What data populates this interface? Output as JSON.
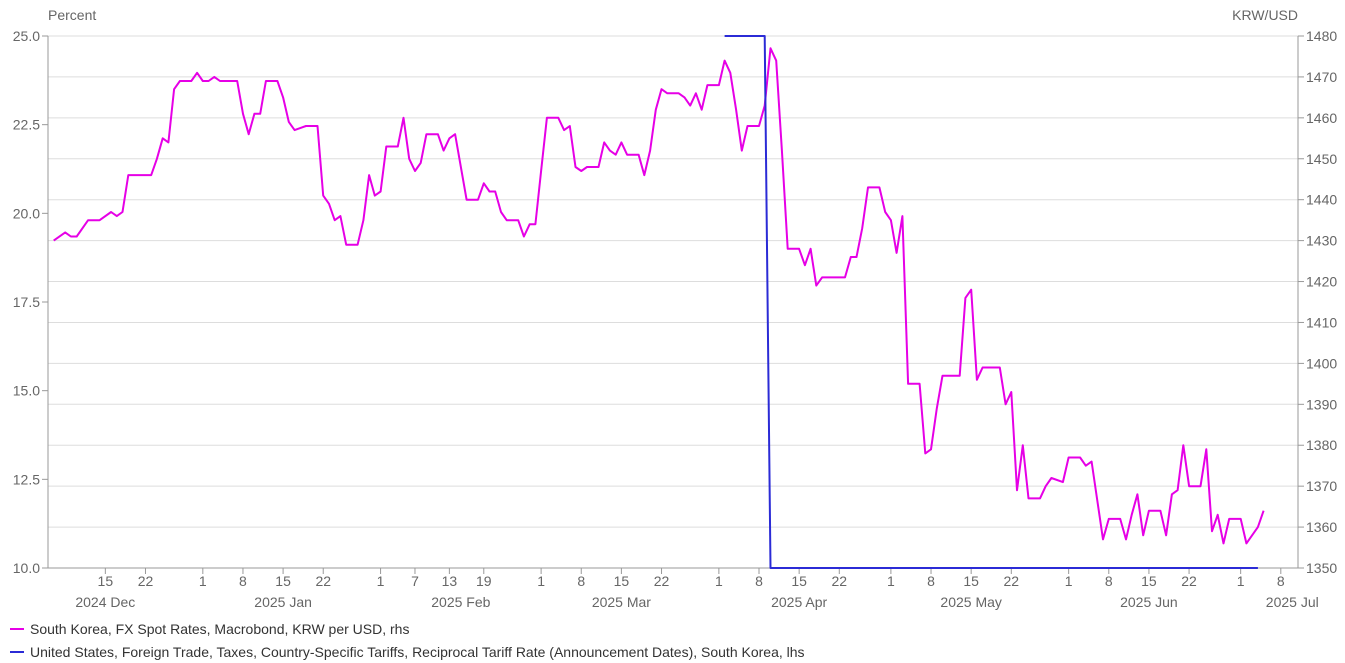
{
  "chart_data": {
    "type": "line",
    "left_axis": {
      "unit_label": "Percent",
      "range": [
        10,
        25
      ],
      "ticks": [
        "25.0",
        "22.5",
        "20.0",
        "17.5",
        "15.0",
        "12.5",
        "10.0"
      ]
    },
    "right_axis": {
      "unit_label": "KRW/USD",
      "range": [
        1350,
        1480
      ],
      "ticks": [
        "1480",
        "1470",
        "1460",
        "1450",
        "1440",
        "1430",
        "1420",
        "1410",
        "1400",
        "1390",
        "1380",
        "1370",
        "1360",
        "1350"
      ]
    },
    "x_axis": {
      "range": [
        "2024-12-05",
        "2025-07-11"
      ],
      "day_ticks": [
        {
          "date": "2024-12-15",
          "label": "15"
        },
        {
          "date": "2024-12-22",
          "label": "22"
        },
        {
          "date": "2025-01-01",
          "label": "1"
        },
        {
          "date": "2025-01-08",
          "label": "8"
        },
        {
          "date": "2025-01-15",
          "label": "15"
        },
        {
          "date": "2025-01-22",
          "label": "22"
        },
        {
          "date": "2025-02-01",
          "label": "1"
        },
        {
          "date": "2025-02-07",
          "label": "7"
        },
        {
          "date": "2025-02-13",
          "label": "13"
        },
        {
          "date": "2025-02-19",
          "label": "19"
        },
        {
          "date": "2025-03-01",
          "label": "1"
        },
        {
          "date": "2025-03-08",
          "label": "8"
        },
        {
          "date": "2025-03-15",
          "label": "15"
        },
        {
          "date": "2025-03-22",
          "label": "22"
        },
        {
          "date": "2025-04-01",
          "label": "1"
        },
        {
          "date": "2025-04-08",
          "label": "8"
        },
        {
          "date": "2025-04-15",
          "label": "15"
        },
        {
          "date": "2025-04-22",
          "label": "22"
        },
        {
          "date": "2025-05-01",
          "label": "1"
        },
        {
          "date": "2025-05-08",
          "label": "8"
        },
        {
          "date": "2025-05-15",
          "label": "15"
        },
        {
          "date": "2025-05-22",
          "label": "22"
        },
        {
          "date": "2025-06-01",
          "label": "1"
        },
        {
          "date": "2025-06-08",
          "label": "8"
        },
        {
          "date": "2025-06-15",
          "label": "15"
        },
        {
          "date": "2025-06-22",
          "label": "22"
        },
        {
          "date": "2025-07-01",
          "label": "1"
        },
        {
          "date": "2025-07-08",
          "label": "8"
        }
      ],
      "month_labels": [
        {
          "date": "2024-12-15",
          "label": "2024 Dec"
        },
        {
          "date": "2025-01-15",
          "label": "2025 Jan"
        },
        {
          "date": "2025-02-15",
          "label": "2025 Feb"
        },
        {
          "date": "2025-03-15",
          "label": "2025 Mar"
        },
        {
          "date": "2025-04-15",
          "label": "2025 Apr"
        },
        {
          "date": "2025-05-15",
          "label": "2025 May"
        },
        {
          "date": "2025-06-15",
          "label": "2025 Jun"
        },
        {
          "date": "2025-07-10",
          "label": "2025 Jul"
        }
      ]
    },
    "grid": true,
    "legend_position": "bottom-left",
    "series": [
      {
        "name": "South Korea, FX Spot Rates, Macrobond, KRW per USD, rhs",
        "axis": "right",
        "color": "#e600e6",
        "points": [
          [
            "2024-12-06",
            1430
          ],
          [
            "2024-12-08",
            1432
          ],
          [
            "2024-12-09",
            1431
          ],
          [
            "2024-12-10",
            1431
          ],
          [
            "2024-12-12",
            1435
          ],
          [
            "2024-12-14",
            1435
          ],
          [
            "2024-12-16",
            1437
          ],
          [
            "2024-12-17",
            1436
          ],
          [
            "2024-12-18",
            1437
          ],
          [
            "2024-12-19",
            1446
          ],
          [
            "2024-12-20",
            1446
          ],
          [
            "2024-12-23",
            1446
          ],
          [
            "2024-12-24",
            1450
          ],
          [
            "2024-12-25",
            1455
          ],
          [
            "2024-12-26",
            1454
          ],
          [
            "2024-12-27",
            1467
          ],
          [
            "2024-12-28",
            1469
          ],
          [
            "2024-12-30",
            1469
          ],
          [
            "2024-12-31",
            1471
          ],
          [
            "2025-01-01",
            1469
          ],
          [
            "2025-01-02",
            1469
          ],
          [
            "2025-01-03",
            1470
          ],
          [
            "2025-01-04",
            1469
          ],
          [
            "2025-01-07",
            1469
          ],
          [
            "2025-01-08",
            1461
          ],
          [
            "2025-01-09",
            1456
          ],
          [
            "2025-01-10",
            1461
          ],
          [
            "2025-01-11",
            1461
          ],
          [
            "2025-01-12",
            1469
          ],
          [
            "2025-01-14",
            1469
          ],
          [
            "2025-01-15",
            1465
          ],
          [
            "2025-01-16",
            1459
          ],
          [
            "2025-01-17",
            1457
          ],
          [
            "2025-01-19",
            1458
          ],
          [
            "2025-01-20",
            1458
          ],
          [
            "2025-01-21",
            1458
          ],
          [
            "2025-01-22",
            1441
          ],
          [
            "2025-01-23",
            1439
          ],
          [
            "2025-01-24",
            1435
          ],
          [
            "2025-01-25",
            1436
          ],
          [
            "2025-01-26",
            1429
          ],
          [
            "2025-01-28",
            1429
          ],
          [
            "2025-01-29",
            1435
          ],
          [
            "2025-01-30",
            1446
          ],
          [
            "2025-01-31",
            1441
          ],
          [
            "2025-02-01",
            1442
          ],
          [
            "2025-02-02",
            1453
          ],
          [
            "2025-02-04",
            1453
          ],
          [
            "2025-02-05",
            1460
          ],
          [
            "2025-02-06",
            1450
          ],
          [
            "2025-02-07",
            1447
          ],
          [
            "2025-02-08",
            1449
          ],
          [
            "2025-02-09",
            1456
          ],
          [
            "2025-02-11",
            1456
          ],
          [
            "2025-02-12",
            1452
          ],
          [
            "2025-02-13",
            1455
          ],
          [
            "2025-02-14",
            1456
          ],
          [
            "2025-02-16",
            1440
          ],
          [
            "2025-02-18",
            1440
          ],
          [
            "2025-02-19",
            1444
          ],
          [
            "2025-02-20",
            1442
          ],
          [
            "2025-02-21",
            1442
          ],
          [
            "2025-02-22",
            1437
          ],
          [
            "2025-02-23",
            1435
          ],
          [
            "2025-02-25",
            1435
          ],
          [
            "2025-02-26",
            1431
          ],
          [
            "2025-02-27",
            1434
          ],
          [
            "2025-02-28",
            1434
          ],
          [
            "2025-03-01",
            1447
          ],
          [
            "2025-03-02",
            1460
          ],
          [
            "2025-03-04",
            1460
          ],
          [
            "2025-03-05",
            1457
          ],
          [
            "2025-03-06",
            1458
          ],
          [
            "2025-03-07",
            1448
          ],
          [
            "2025-03-08",
            1447
          ],
          [
            "2025-03-09",
            1448
          ],
          [
            "2025-03-11",
            1448
          ],
          [
            "2025-03-12",
            1454
          ],
          [
            "2025-03-13",
            1452
          ],
          [
            "2025-03-14",
            1451
          ],
          [
            "2025-03-15",
            1454
          ],
          [
            "2025-03-16",
            1451
          ],
          [
            "2025-03-18",
            1451
          ],
          [
            "2025-03-19",
            1446
          ],
          [
            "2025-03-20",
            1452
          ],
          [
            "2025-03-21",
            1462
          ],
          [
            "2025-03-22",
            1467
          ],
          [
            "2025-03-23",
            1466
          ],
          [
            "2025-03-25",
            1466
          ],
          [
            "2025-03-26",
            1465
          ],
          [
            "2025-03-27",
            1463
          ],
          [
            "2025-03-28",
            1466
          ],
          [
            "2025-03-29",
            1462
          ],
          [
            "2025-03-30",
            1468
          ],
          [
            "2025-04-01",
            1468
          ],
          [
            "2025-04-02",
            1474
          ],
          [
            "2025-04-03",
            1471
          ],
          [
            "2025-04-04",
            1462
          ],
          [
            "2025-04-05",
            1452
          ],
          [
            "2025-04-06",
            1458
          ],
          [
            "2025-04-08",
            1458
          ],
          [
            "2025-04-09",
            1463
          ],
          [
            "2025-04-10",
            1477
          ],
          [
            "2025-04-11",
            1474
          ],
          [
            "2025-04-12",
            1452
          ],
          [
            "2025-04-13",
            1428
          ],
          [
            "2025-04-15",
            1428
          ],
          [
            "2025-04-16",
            1424
          ],
          [
            "2025-04-17",
            1428
          ],
          [
            "2025-04-18",
            1419
          ],
          [
            "2025-04-19",
            1421
          ],
          [
            "2025-04-22",
            1421
          ],
          [
            "2025-04-23",
            1421
          ],
          [
            "2025-04-24",
            1426
          ],
          [
            "2025-04-25",
            1426
          ],
          [
            "2025-04-26",
            1433
          ],
          [
            "2025-04-27",
            1443
          ],
          [
            "2025-04-29",
            1443
          ],
          [
            "2025-04-30",
            1437
          ],
          [
            "2025-05-01",
            1435
          ],
          [
            "2025-05-02",
            1427
          ],
          [
            "2025-05-03",
            1436
          ],
          [
            "2025-05-04",
            1395
          ],
          [
            "2025-05-06",
            1395
          ],
          [
            "2025-05-07",
            1378
          ],
          [
            "2025-05-08",
            1379
          ],
          [
            "2025-05-09",
            1389
          ],
          [
            "2025-05-10",
            1397
          ],
          [
            "2025-05-13",
            1397
          ],
          [
            "2025-05-14",
            1416
          ],
          [
            "2025-05-15",
            1418
          ],
          [
            "2025-05-16",
            1396
          ],
          [
            "2025-05-17",
            1399
          ],
          [
            "2025-05-18",
            1399
          ],
          [
            "2025-05-20",
            1399
          ],
          [
            "2025-05-21",
            1390
          ],
          [
            "2025-05-22",
            1393
          ],
          [
            "2025-05-23",
            1369
          ],
          [
            "2025-05-24",
            1380
          ],
          [
            "2025-05-25",
            1367
          ],
          [
            "2025-05-27",
            1367
          ],
          [
            "2025-05-28",
            1370
          ],
          [
            "2025-05-29",
            1372
          ],
          [
            "2025-05-31",
            1371
          ],
          [
            "2025-06-01",
            1377
          ],
          [
            "2025-06-03",
            1377
          ],
          [
            "2025-06-04",
            1375
          ],
          [
            "2025-06-05",
            1376
          ],
          [
            "2025-06-07",
            1357
          ],
          [
            "2025-06-08",
            1362
          ],
          [
            "2025-06-10",
            1362
          ],
          [
            "2025-06-11",
            1357
          ],
          [
            "2025-06-12",
            1363
          ],
          [
            "2025-06-13",
            1368
          ],
          [
            "2025-06-14",
            1358
          ],
          [
            "2025-06-15",
            1364
          ],
          [
            "2025-06-17",
            1364
          ],
          [
            "2025-06-18",
            1358
          ],
          [
            "2025-06-19",
            1368
          ],
          [
            "2025-06-20",
            1369
          ],
          [
            "2025-06-21",
            1380
          ],
          [
            "2025-06-22",
            1370
          ],
          [
            "2025-06-24",
            1370
          ],
          [
            "2025-06-25",
            1379
          ],
          [
            "2025-06-26",
            1359
          ],
          [
            "2025-06-27",
            1363
          ],
          [
            "2025-06-28",
            1356
          ],
          [
            "2025-06-29",
            1362
          ],
          [
            "2025-07-01",
            1362
          ],
          [
            "2025-07-02",
            1356
          ],
          [
            "2025-07-03",
            1358
          ],
          [
            "2025-07-04",
            1360
          ],
          [
            "2025-07-05",
            1364
          ]
        ]
      },
      {
        "name": "United States, Foreign Trade, Taxes, Country-Specific Tariffs, Reciprocal Tariff Rate (Announcement Dates), South Korea, lhs",
        "axis": "left",
        "color": "#2b2bd6",
        "points": [
          [
            "2025-04-02",
            25
          ],
          [
            "2025-04-09",
            25
          ],
          [
            "2025-04-10",
            10
          ],
          [
            "2025-07-04",
            10
          ]
        ]
      }
    ]
  }
}
